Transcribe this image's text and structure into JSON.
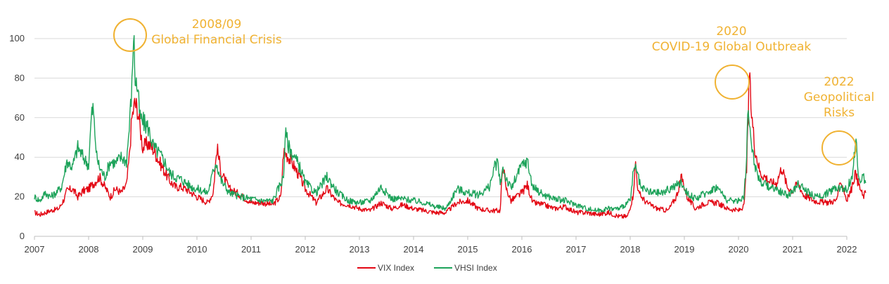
{
  "chart_data": {
    "type": "line",
    "title": "",
    "xlabel": "",
    "ylabel": "",
    "xlim": [
      2007.0,
      2022.0
    ],
    "ylim": [
      0,
      100
    ],
    "grid": "horizontal",
    "legend_position": "bottom",
    "x_ticks": [
      "2007",
      "2008",
      "2009",
      "2010",
      "2011",
      "2012",
      "2013",
      "2014",
      "2015",
      "2016",
      "2017",
      "2018",
      "2019",
      "2020",
      "2021",
      "2022"
    ],
    "y_ticks": [
      "0",
      "20",
      "40",
      "60",
      "80",
      "100"
    ],
    "series": [
      {
        "name": "VIX Index",
        "color": "#E30613",
        "points": [
          [
            2007.0,
            12
          ],
          [
            2007.1,
            11
          ],
          [
            2007.2,
            12
          ],
          [
            2007.3,
            13
          ],
          [
            2007.45,
            14
          ],
          [
            2007.55,
            19
          ],
          [
            2007.6,
            23
          ],
          [
            2007.7,
            24
          ],
          [
            2007.8,
            20
          ],
          [
            2007.9,
            23
          ],
          [
            2008.0,
            24
          ],
          [
            2008.1,
            27
          ],
          [
            2008.2,
            30
          ],
          [
            2008.3,
            25
          ],
          [
            2008.4,
            20
          ],
          [
            2008.5,
            24
          ],
          [
            2008.6,
            22
          ],
          [
            2008.7,
            26
          ],
          [
            2008.75,
            40
          ],
          [
            2008.8,
            60
          ],
          [
            2008.85,
            67
          ],
          [
            2008.9,
            65
          ],
          [
            2008.95,
            55
          ],
          [
            2009.0,
            45
          ],
          [
            2009.1,
            47
          ],
          [
            2009.2,
            44
          ],
          [
            2009.3,
            38
          ],
          [
            2009.4,
            33
          ],
          [
            2009.5,
            28
          ],
          [
            2009.6,
            25
          ],
          [
            2009.7,
            25
          ],
          [
            2009.8,
            24
          ],
          [
            2009.9,
            22
          ],
          [
            2010.0,
            20
          ],
          [
            2010.2,
            17
          ],
          [
            2010.3,
            22
          ],
          [
            2010.37,
            45
          ],
          [
            2010.45,
            32
          ],
          [
            2010.6,
            24
          ],
          [
            2010.8,
            21
          ],
          [
            2011.0,
            17
          ],
          [
            2011.2,
            17
          ],
          [
            2011.4,
            16
          ],
          [
            2011.55,
            20
          ],
          [
            2011.6,
            43
          ],
          [
            2011.7,
            40
          ],
          [
            2011.8,
            35
          ],
          [
            2011.9,
            30
          ],
          [
            2012.0,
            24
          ],
          [
            2012.2,
            17
          ],
          [
            2012.4,
            24
          ],
          [
            2012.6,
            17
          ],
          [
            2012.8,
            16
          ],
          [
            2013.0,
            14
          ],
          [
            2013.2,
            13
          ],
          [
            2013.4,
            17
          ],
          [
            2013.6,
            14
          ],
          [
            2013.8,
            16
          ],
          [
            2014.0,
            14
          ],
          [
            2014.2,
            13
          ],
          [
            2014.4,
            12
          ],
          [
            2014.6,
            12
          ],
          [
            2014.8,
            17
          ],
          [
            2015.0,
            18
          ],
          [
            2015.2,
            14
          ],
          [
            2015.4,
            13
          ],
          [
            2015.6,
            13
          ],
          [
            2015.65,
            38
          ],
          [
            2015.7,
            25
          ],
          [
            2015.8,
            18
          ],
          [
            2016.0,
            22
          ],
          [
            2016.1,
            26
          ],
          [
            2016.2,
            17
          ],
          [
            2016.4,
            16
          ],
          [
            2016.6,
            14
          ],
          [
            2016.8,
            15
          ],
          [
            2017.0,
            12
          ],
          [
            2017.2,
            12
          ],
          [
            2017.4,
            11
          ],
          [
            2017.6,
            12
          ],
          [
            2017.8,
            10
          ],
          [
            2017.95,
            10
          ],
          [
            2018.05,
            20
          ],
          [
            2018.1,
            37
          ],
          [
            2018.15,
            22
          ],
          [
            2018.3,
            17
          ],
          [
            2018.5,
            14
          ],
          [
            2018.7,
            13
          ],
          [
            2018.85,
            20
          ],
          [
            2018.95,
            30
          ],
          [
            2019.05,
            20
          ],
          [
            2019.2,
            14
          ],
          [
            2019.4,
            17
          ],
          [
            2019.6,
            17
          ],
          [
            2019.8,
            14
          ],
          [
            2020.0,
            13
          ],
          [
            2020.1,
            15
          ],
          [
            2020.15,
            35
          ],
          [
            2020.18,
            60
          ],
          [
            2020.2,
            83
          ],
          [
            2020.23,
            66
          ],
          [
            2020.3,
            45
          ],
          [
            2020.4,
            32
          ],
          [
            2020.5,
            30
          ],
          [
            2020.6,
            27
          ],
          [
            2020.7,
            27
          ],
          [
            2020.8,
            35
          ],
          [
            2020.9,
            25
          ],
          [
            2021.0,
            23
          ],
          [
            2021.1,
            27
          ],
          [
            2021.2,
            21
          ],
          [
            2021.4,
            18
          ],
          [
            2021.6,
            17
          ],
          [
            2021.8,
            18
          ],
          [
            2021.9,
            28
          ],
          [
            2022.0,
            18
          ],
          [
            2022.1,
            25
          ],
          [
            2022.15,
            32
          ],
          [
            2022.2,
            28
          ],
          [
            2022.3,
            20
          ],
          [
            2022.35,
            22
          ]
        ]
      },
      {
        "name": "VHSI Index",
        "color": "#1DA35A",
        "points": [
          [
            2007.0,
            20
          ],
          [
            2007.1,
            18
          ],
          [
            2007.2,
            22
          ],
          [
            2007.3,
            20
          ],
          [
            2007.4,
            22
          ],
          [
            2007.5,
            25
          ],
          [
            2007.6,
            38
          ],
          [
            2007.7,
            35
          ],
          [
            2007.8,
            45
          ],
          [
            2007.9,
            40
          ],
          [
            2008.0,
            36
          ],
          [
            2008.05,
            60
          ],
          [
            2008.08,
            65
          ],
          [
            2008.15,
            40
          ],
          [
            2008.2,
            35
          ],
          [
            2008.3,
            30
          ],
          [
            2008.4,
            38
          ],
          [
            2008.5,
            37
          ],
          [
            2008.6,
            40
          ],
          [
            2008.7,
            38
          ],
          [
            2008.75,
            55
          ],
          [
            2008.8,
            76
          ],
          [
            2008.83,
            104
          ],
          [
            2008.86,
            80
          ],
          [
            2008.9,
            75
          ],
          [
            2008.95,
            60
          ],
          [
            2009.0,
            58
          ],
          [
            2009.1,
            55
          ],
          [
            2009.2,
            45
          ],
          [
            2009.3,
            42
          ],
          [
            2009.4,
            38
          ],
          [
            2009.5,
            32
          ],
          [
            2009.6,
            30
          ],
          [
            2009.7,
            29
          ],
          [
            2009.8,
            27
          ],
          [
            2009.9,
            25
          ],
          [
            2010.0,
            24
          ],
          [
            2010.2,
            22
          ],
          [
            2010.35,
            38
          ],
          [
            2010.45,
            28
          ],
          [
            2010.6,
            22
          ],
          [
            2010.8,
            20
          ],
          [
            2011.0,
            19
          ],
          [
            2011.2,
            18
          ],
          [
            2011.4,
            18
          ],
          [
            2011.6,
            30
          ],
          [
            2011.63,
            52
          ],
          [
            2011.7,
            45
          ],
          [
            2011.8,
            40
          ],
          [
            2011.9,
            35
          ],
          [
            2012.0,
            27
          ],
          [
            2012.2,
            22
          ],
          [
            2012.4,
            30
          ],
          [
            2012.6,
            22
          ],
          [
            2012.8,
            18
          ],
          [
            2013.0,
            17
          ],
          [
            2013.2,
            18
          ],
          [
            2013.4,
            25
          ],
          [
            2013.6,
            19
          ],
          [
            2013.8,
            19
          ],
          [
            2014.0,
            18
          ],
          [
            2014.2,
            17
          ],
          [
            2014.4,
            15
          ],
          [
            2014.6,
            14
          ],
          [
            2014.8,
            24
          ],
          [
            2015.0,
            22
          ],
          [
            2015.2,
            21
          ],
          [
            2015.4,
            25
          ],
          [
            2015.5,
            35
          ],
          [
            2015.55,
            38
          ],
          [
            2015.6,
            26
          ],
          [
            2015.65,
            35
          ],
          [
            2015.7,
            30
          ],
          [
            2015.8,
            24
          ],
          [
            2016.0,
            36
          ],
          [
            2016.1,
            38
          ],
          [
            2016.2,
            25
          ],
          [
            2016.4,
            21
          ],
          [
            2016.6,
            19
          ],
          [
            2016.8,
            18
          ],
          [
            2017.0,
            16
          ],
          [
            2017.2,
            14
          ],
          [
            2017.4,
            13
          ],
          [
            2017.6,
            14
          ],
          [
            2017.8,
            14
          ],
          [
            2018.0,
            18
          ],
          [
            2018.05,
            30
          ],
          [
            2018.1,
            35
          ],
          [
            2018.2,
            24
          ],
          [
            2018.4,
            22
          ],
          [
            2018.6,
            22
          ],
          [
            2018.8,
            25
          ],
          [
            2018.95,
            27
          ],
          [
            2019.05,
            22
          ],
          [
            2019.2,
            19
          ],
          [
            2019.4,
            22
          ],
          [
            2019.6,
            25
          ],
          [
            2019.8,
            18
          ],
          [
            2020.0,
            18
          ],
          [
            2020.1,
            20
          ],
          [
            2020.15,
            40
          ],
          [
            2020.18,
            66
          ],
          [
            2020.2,
            60
          ],
          [
            2020.25,
            45
          ],
          [
            2020.3,
            36
          ],
          [
            2020.4,
            28
          ],
          [
            2020.5,
            26
          ],
          [
            2020.6,
            25
          ],
          [
            2020.7,
            24
          ],
          [
            2020.8,
            22
          ],
          [
            2020.9,
            21
          ],
          [
            2021.0,
            22
          ],
          [
            2021.1,
            27
          ],
          [
            2021.2,
            24
          ],
          [
            2021.4,
            20
          ],
          [
            2021.6,
            21
          ],
          [
            2021.8,
            25
          ],
          [
            2022.0,
            24
          ],
          [
            2022.1,
            30
          ],
          [
            2022.17,
            49
          ],
          [
            2022.2,
            35
          ],
          [
            2022.25,
            28
          ],
          [
            2022.3,
            30
          ],
          [
            2022.35,
            27
          ]
        ]
      }
    ],
    "annotations": [
      {
        "lines": [
          "2008/09",
          "Global Financial Crisis"
        ],
        "x": 2008.83,
        "y": 102
      },
      {
        "lines": [
          "2020",
          "COVID-19 Global Outbreak"
        ],
        "x": 2020.2,
        "y": 78
      },
      {
        "lines": [
          "2022",
          "Geopolitical",
          "Risks"
        ],
        "x": 2022.17,
        "y": 44
      }
    ],
    "annotation_color": "#F0B232"
  }
}
